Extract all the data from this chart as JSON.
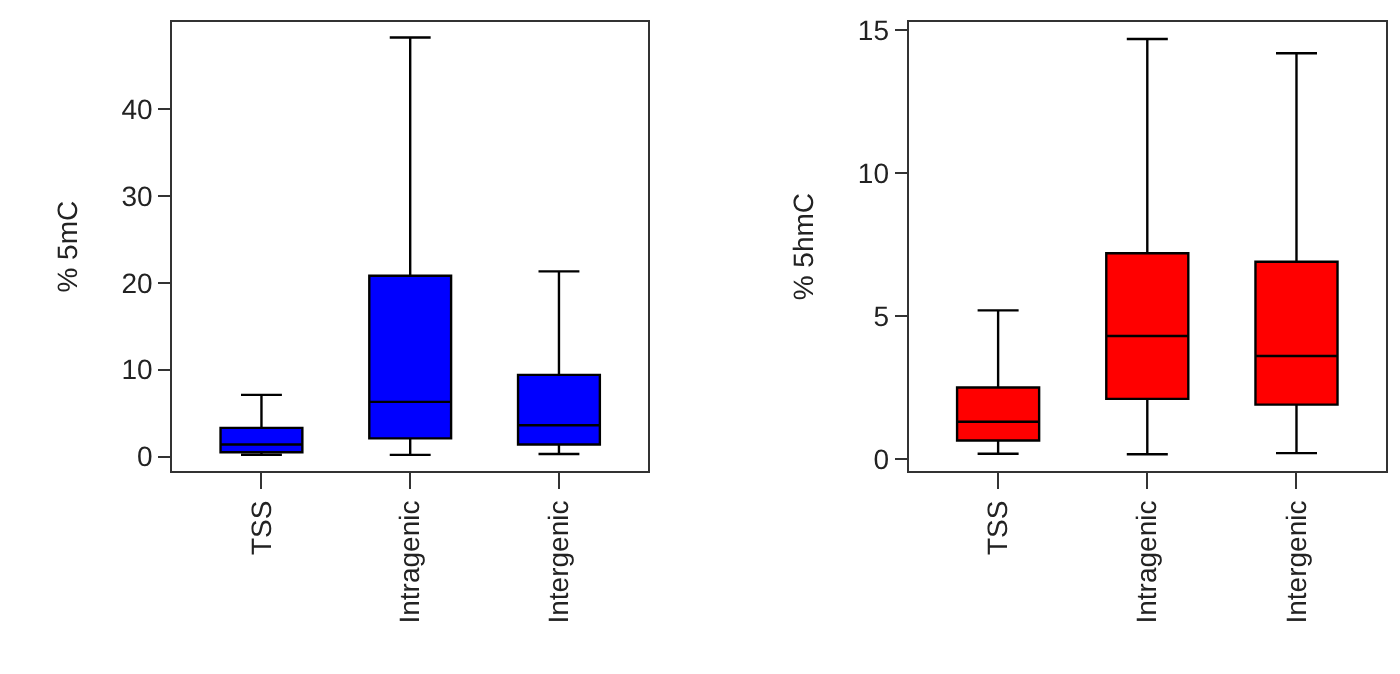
{
  "chart_data": [
    {
      "type": "box",
      "ylabel": "% 5mC",
      "categories": [
        "TSS",
        "Intragenic",
        "Intergenic"
      ],
      "ylim": [
        -1.7,
        50
      ],
      "yticks": [
        0,
        10,
        20,
        30,
        40
      ],
      "series": [
        {
          "color": "#0000ff",
          "boxes": [
            {
              "low": 0.2,
              "q1": 0.5,
              "median": 1.4,
              "q3": 3.3,
              "high": 7.1
            },
            {
              "low": 0.2,
              "q1": 2.1,
              "median": 6.3,
              "q3": 20.8,
              "high": 48.2
            },
            {
              "low": 0.3,
              "q1": 1.4,
              "median": 3.6,
              "q3": 9.4,
              "high": 21.3
            }
          ]
        }
      ]
    },
    {
      "type": "box",
      "ylabel": "% 5hmC",
      "categories": [
        "TSS",
        "Intragenic",
        "Intergenic"
      ],
      "ylim": [
        -0.44,
        15.3
      ],
      "yticks": [
        0,
        5,
        10,
        15
      ],
      "series": [
        {
          "color": "#ff0000",
          "boxes": [
            {
              "low": 0.18,
              "q1": 0.64,
              "median": 1.3,
              "q3": 2.5,
              "high": 5.2
            },
            {
              "low": 0.16,
              "q1": 2.1,
              "median": 4.3,
              "q3": 7.2,
              "high": 14.7
            },
            {
              "low": 0.2,
              "q1": 1.9,
              "median": 3.6,
              "q3": 6.9,
              "high": 14.2
            }
          ]
        }
      ]
    }
  ]
}
